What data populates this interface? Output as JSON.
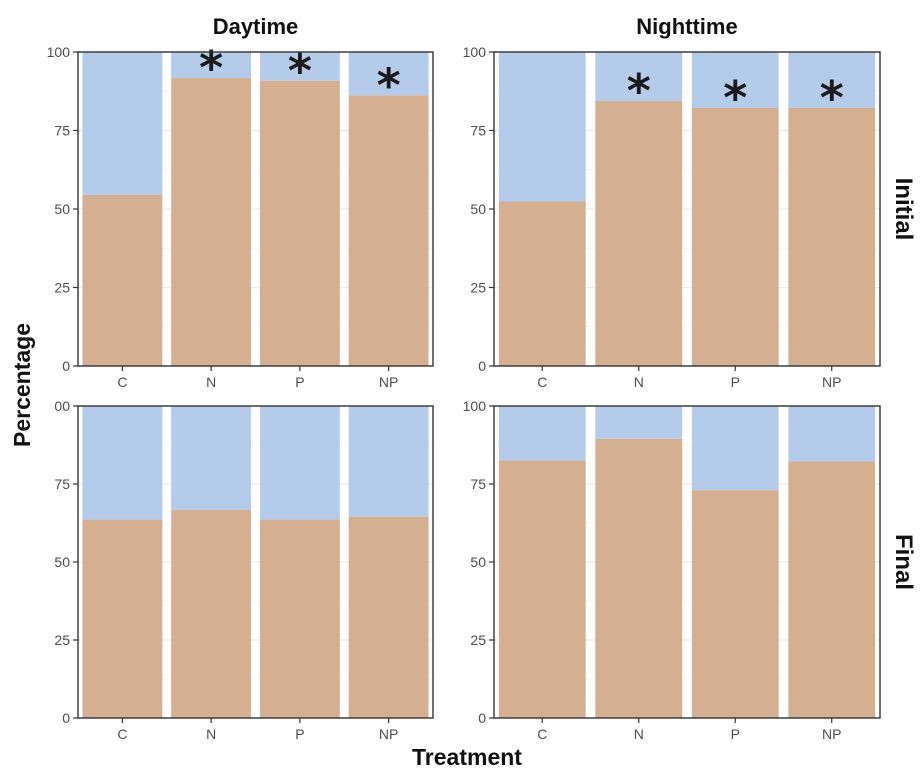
{
  "chart_data": {
    "type": "bar",
    "stacked": true,
    "xlabel": "Treatment",
    "ylabel": "Percentage",
    "ylim": [
      0,
      100
    ],
    "yticks": [
      "0",
      "25",
      "50",
      "75",
      "100"
    ],
    "categories": [
      "C",
      "N",
      "P",
      "NP"
    ],
    "column_facets": [
      "Daytime",
      "Nighttime"
    ],
    "row_facets": [
      "Initial",
      "Final"
    ],
    "colors": {
      "lower": "#d4af92",
      "upper": "#b4cbea",
      "frame": "#333333",
      "grid": "#ebebeb"
    },
    "significance_marker": "*",
    "panels": [
      {
        "column": "Daytime",
        "row": "Initial",
        "lower_values": [
          54.5,
          91.7,
          90.8,
          86.2
        ],
        "significant": [
          false,
          true,
          true,
          true
        ]
      },
      {
        "column": "Nighttime",
        "row": "Initial",
        "lower_values": [
          52.4,
          84.4,
          82.2,
          82.2
        ],
        "significant": [
          false,
          true,
          true,
          true
        ]
      },
      {
        "column": "Daytime",
        "row": "Final",
        "lower_values": [
          63.6,
          66.7,
          63.6,
          64.5
        ],
        "significant": [
          false,
          false,
          false,
          false
        ]
      },
      {
        "column": "Nighttime",
        "row": "Final",
        "lower_values": [
          82.5,
          89.5,
          73.0,
          82.2
        ],
        "significant": [
          false,
          false,
          false,
          false
        ]
      }
    ]
  }
}
